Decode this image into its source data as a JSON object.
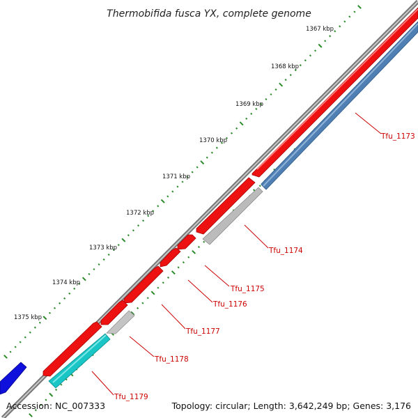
{
  "title": "Thermobifida fusca YX, complete genome",
  "footer": {
    "accession": "Accession: NC_007333",
    "summary": "Topology: circular; Length: 3,642,249 bp; Genes: 3,176"
  },
  "ruler": {
    "ticks": [
      "1367 kbp",
      "1368 kbp",
      "1369 kbp",
      "1370 kbp",
      "1371 kbp",
      "1372 kbp",
      "1373 kbp",
      "1374 kbp",
      "1375 kbp"
    ]
  },
  "genes": [
    {
      "name": "Tfu_1173"
    },
    {
      "name": "Tfu_1174"
    },
    {
      "name": "Tfu_1175"
    },
    {
      "name": "Tfu_1176"
    },
    {
      "name": "Tfu_1177"
    },
    {
      "name": "Tfu_1178"
    },
    {
      "name": "Tfu_1179"
    }
  ],
  "colors": {
    "backbone": "#8a8a8a",
    "cds_forward": "#ee1111",
    "cds_reverse_blue": "#4f7fb3",
    "cds_reverse_gray": "#bbbbbb",
    "cds_reverse_cyan": "#19c5c5",
    "other_feature": "#1010dd",
    "tick_major": "#2a8a2a",
    "label": "#cc0000"
  }
}
